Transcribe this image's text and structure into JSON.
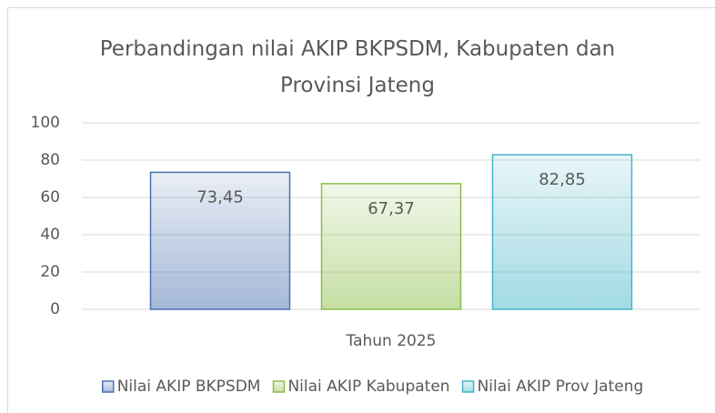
{
  "chart_data": {
    "type": "bar",
    "title": "Perbandingan nilai AKIP BKPSDM, Kabupaten dan Provinsi Jateng",
    "categories": [
      "Tahun 2025"
    ],
    "series": [
      {
        "name": "Nilai AKIP BKPSDM",
        "color": "#4a72b0",
        "values": [
          73.45
        ],
        "value_labels": [
          "73,45"
        ]
      },
      {
        "name": "Nilai AKIP Kabupaten",
        "color": "#8cbd4a",
        "values": [
          67.37
        ],
        "value_labels": [
          "67,37"
        ]
      },
      {
        "name": "Nilai AKIP Prov Jateng",
        "color": "#45b5c8",
        "values": [
          82.85
        ],
        "value_labels": [
          "82,85"
        ]
      }
    ],
    "ylim": [
      0,
      100
    ],
    "yticks": [
      0,
      20,
      40,
      60,
      80,
      100
    ],
    "grid": true,
    "legend": "bottom"
  }
}
